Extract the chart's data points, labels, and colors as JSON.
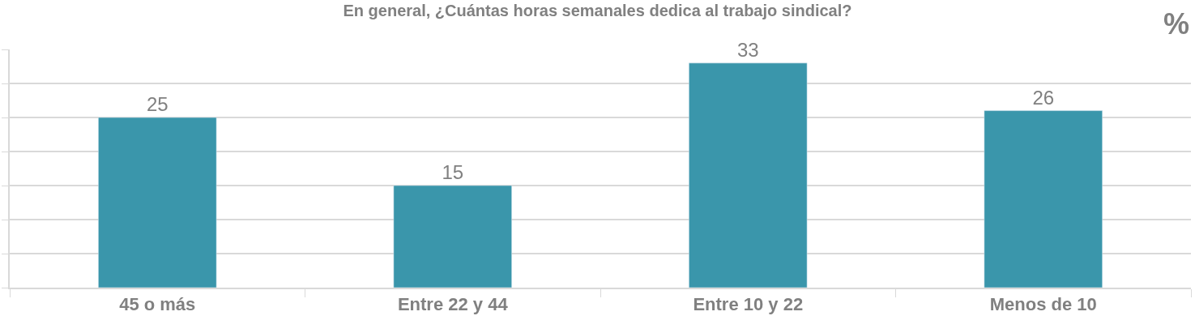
{
  "chart_data": {
    "type": "bar",
    "title": "En general, ¿Cuántas horas semanales dedica al trabajo sindical?",
    "ylabel": "%",
    "categories": [
      "45 o más",
      "Entre 22 y 44",
      "Entre 10 y 22",
      "Menos de 10"
    ],
    "values": [
      25,
      15,
      33,
      26
    ],
    "color": "#3a96ab",
    "data_labels": true,
    "ylim": [
      0,
      35
    ],
    "yticks": [
      {
        "value": 0,
        "label": null
      },
      {
        "value": 5,
        "label": null
      },
      {
        "value": 10,
        "label": null
      },
      {
        "value": 15,
        "label": null
      },
      {
        "value": 20,
        "label": null
      },
      {
        "value": 25,
        "label": null
      },
      {
        "value": 30,
        "label": null
      },
      {
        "value": 35,
        "label": null
      }
    ],
    "grid": "y",
    "tick_labels": "x"
  }
}
